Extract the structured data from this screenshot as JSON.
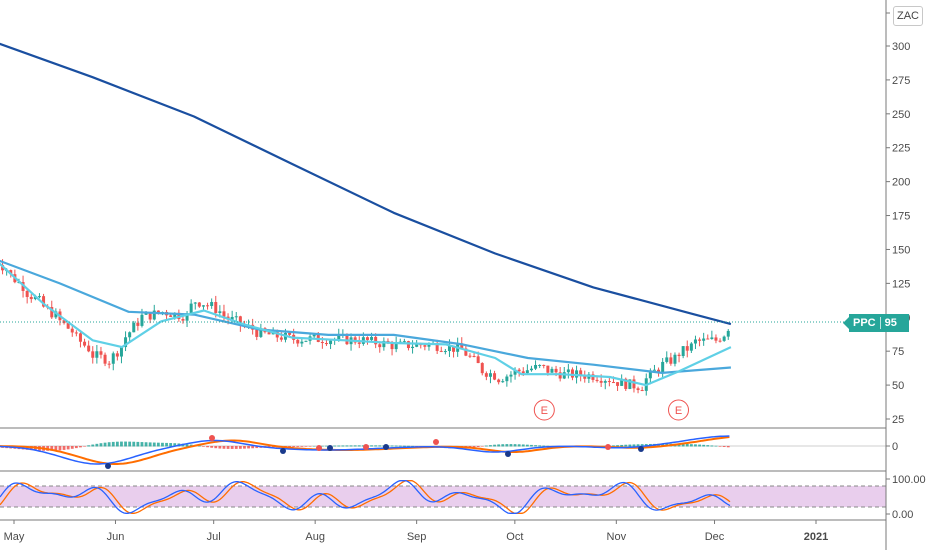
{
  "symbol_box": {
    "label": "ZAC"
  },
  "price_tag": {
    "ticker": "PPC",
    "value": "95"
  },
  "chart_data": [
    {
      "type": "candlestick",
      "price_axis": {
        "ticks": [
          "300",
          "275",
          "250",
          "225",
          "200",
          "175",
          "150",
          "125",
          "100",
          "75",
          "50",
          "25"
        ],
        "range": [
          17,
          318
        ]
      },
      "time_axis": {
        "ticks": [
          "May",
          "Jun",
          "Jul",
          "Aug",
          "Sep",
          "Oct",
          "Nov",
          "Dec",
          "2021"
        ]
      },
      "last_price": 95,
      "earnings_markers": [
        {
          "label": "E",
          "date": "2020-10-10"
        },
        {
          "label": "E",
          "date": "2020-11-20"
        }
      ],
      "ohlc_close_path": [
        {
          "date": "2020-04-25",
          "close": 143
        },
        {
          "date": "2020-05-05",
          "close": 118
        },
        {
          "date": "2020-05-15",
          "close": 97
        },
        {
          "date": "2020-05-25",
          "close": 72
        },
        {
          "date": "2020-05-30",
          "close": 68
        },
        {
          "date": "2020-06-03",
          "close": 82
        },
        {
          "date": "2020-06-08",
          "close": 100
        },
        {
          "date": "2020-06-15",
          "close": 104
        },
        {
          "date": "2020-06-22",
          "close": 101
        },
        {
          "date": "2020-06-25",
          "close": 112
        },
        {
          "date": "2020-06-30",
          "close": 108
        },
        {
          "date": "2020-07-05",
          "close": 99
        },
        {
          "date": "2020-07-15",
          "close": 88
        },
        {
          "date": "2020-07-25",
          "close": 84
        },
        {
          "date": "2020-08-05",
          "close": 84
        },
        {
          "date": "2020-08-15",
          "close": 83
        },
        {
          "date": "2020-08-25",
          "close": 79
        },
        {
          "date": "2020-09-05",
          "close": 80
        },
        {
          "date": "2020-09-15",
          "close": 76
        },
        {
          "date": "2020-09-20",
          "close": 62
        },
        {
          "date": "2020-09-26",
          "close": 55
        },
        {
          "date": "2020-10-01",
          "close": 60
        },
        {
          "date": "2020-10-08",
          "close": 63
        },
        {
          "date": "2020-10-15",
          "close": 58
        },
        {
          "date": "2020-10-25",
          "close": 57
        },
        {
          "date": "2020-11-03",
          "close": 51
        },
        {
          "date": "2020-11-08",
          "close": 49
        },
        {
          "date": "2020-11-12",
          "close": 60
        },
        {
          "date": "2020-11-18",
          "close": 70
        },
        {
          "date": "2020-11-25",
          "close": 82
        },
        {
          "date": "2020-12-01",
          "close": 83
        },
        {
          "date": "2020-12-06",
          "close": 95
        }
      ],
      "moving_averages": [
        {
          "color": "#1a4fa0",
          "points": [
            {
              "date": "2020-04-25",
              "value": 303
            },
            {
              "date": "2020-05-25",
              "value": 277
            },
            {
              "date": "2020-06-25",
              "value": 248
            },
            {
              "date": "2020-07-25",
              "value": 213
            },
            {
              "date": "2020-08-25",
              "value": 177
            },
            {
              "date": "2020-09-25",
              "value": 147
            },
            {
              "date": "2020-10-25",
              "value": 122
            },
            {
              "date": "2020-11-25",
              "value": 102
            },
            {
              "date": "2020-12-06",
              "value": 95
            }
          ]
        },
        {
          "color": "#4aa8dc",
          "points": [
            {
              "date": "2020-04-25",
              "value": 143
            },
            {
              "date": "2020-05-15",
              "value": 125
            },
            {
              "date": "2020-06-05",
              "value": 104
            },
            {
              "date": "2020-06-25",
              "value": 102
            },
            {
              "date": "2020-07-15",
              "value": 91
            },
            {
              "date": "2020-08-05",
              "value": 87
            },
            {
              "date": "2020-08-25",
              "value": 87
            },
            {
              "date": "2020-09-15",
              "value": 80
            },
            {
              "date": "2020-10-05",
              "value": 70
            },
            {
              "date": "2020-10-25",
              "value": 65
            },
            {
              "date": "2020-11-15",
              "value": 59
            },
            {
              "date": "2020-12-06",
              "value": 63
            }
          ]
        },
        {
          "color": "#5fd0e6",
          "points": [
            {
              "date": "2020-04-25",
              "value": 143
            },
            {
              "date": "2020-05-10",
              "value": 110
            },
            {
              "date": "2020-05-25",
              "value": 83
            },
            {
              "date": "2020-06-03",
              "value": 78
            },
            {
              "date": "2020-06-15",
              "value": 97
            },
            {
              "date": "2020-06-28",
              "value": 105
            },
            {
              "date": "2020-07-10",
              "value": 95
            },
            {
              "date": "2020-07-25",
              "value": 85
            },
            {
              "date": "2020-08-10",
              "value": 83
            },
            {
              "date": "2020-08-25",
              "value": 81
            },
            {
              "date": "2020-09-10",
              "value": 80
            },
            {
              "date": "2020-09-25",
              "value": 70
            },
            {
              "date": "2020-10-03",
              "value": 58
            },
            {
              "date": "2020-10-15",
              "value": 58
            },
            {
              "date": "2020-10-30",
              "value": 56
            },
            {
              "date": "2020-11-10",
              "value": 50
            },
            {
              "date": "2020-11-20",
              "value": 60
            },
            {
              "date": "2020-12-06",
              "value": 78
            }
          ]
        }
      ]
    },
    {
      "type": "macd",
      "axis": {
        "ticks": [
          "0"
        ]
      },
      "colors": {
        "histogram_up": "#26a69a",
        "histogram_down": "#ef5350",
        "macd": "#2962ff",
        "signal": "#ff6d00"
      }
    },
    {
      "type": "stochastic",
      "axis": {
        "ticks": [
          "100.00",
          "0.00"
        ]
      },
      "band": [
        20,
        80
      ],
      "colors": {
        "k": "#2962ff",
        "d": "#ff6d00",
        "band": "#e1bee7"
      }
    }
  ]
}
